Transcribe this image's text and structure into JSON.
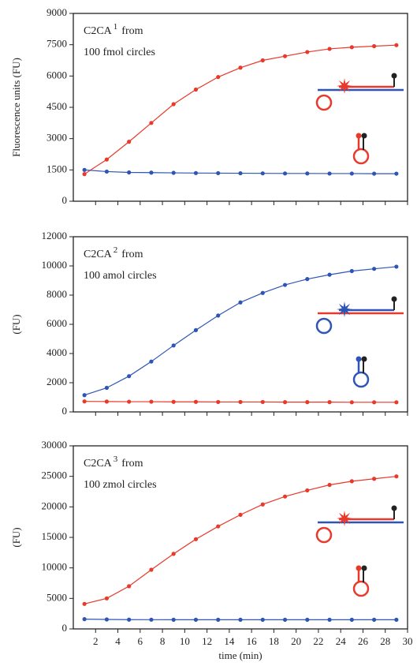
{
  "chart_data": [
    {
      "type": "line",
      "ylabel": "Fluorescence units (FU)",
      "annotation": {
        "text": "C2CA",
        "superscript": "1",
        "suffix": "from",
        "line2": "100 fmol circles"
      },
      "xlim": [
        0,
        30
      ],
      "xticks": [
        2,
        4,
        6,
        8,
        10,
        12,
        14,
        16,
        18,
        20,
        22,
        24,
        26,
        28,
        30
      ],
      "ylim": [
        0,
        9000
      ],
      "yticks": [
        0,
        1500,
        3000,
        4500,
        6000,
        7500,
        9000
      ],
      "x": [
        1,
        3,
        5,
        7,
        9,
        11,
        13,
        15,
        17,
        19,
        21,
        23,
        25,
        27,
        29
      ],
      "series": [
        {
          "color": "#e8392b",
          "values": [
            1300,
            2000,
            2850,
            3750,
            4650,
            5350,
            5950,
            6400,
            6750,
            6950,
            7150,
            7300,
            7380,
            7430,
            7480
          ]
        },
        {
          "color": "#2e55b5",
          "values": [
            1500,
            1420,
            1380,
            1370,
            1360,
            1350,
            1345,
            1340,
            1335,
            1330,
            1330,
            1325,
            1325,
            1320,
            1320
          ]
        }
      ]
    },
    {
      "type": "line",
      "ylabel": "(FU)",
      "annotation": {
        "text": "C2CA",
        "superscript": "2",
        "suffix": "from",
        "line2": "100 amol circles"
      },
      "xlim": [
        0,
        30
      ],
      "xticks": [
        2,
        4,
        6,
        8,
        10,
        12,
        14,
        16,
        18,
        20,
        22,
        24,
        26,
        28,
        30
      ],
      "ylim": [
        0,
        12000
      ],
      "yticks": [
        0,
        2000,
        4000,
        6000,
        8000,
        10000,
        12000
      ],
      "x": [
        1,
        3,
        5,
        7,
        9,
        11,
        13,
        15,
        17,
        19,
        21,
        23,
        25,
        27,
        29
      ],
      "series": [
        {
          "color": "#2e55b5",
          "values": [
            1150,
            1650,
            2450,
            3450,
            4550,
            5600,
            6600,
            7500,
            8150,
            8700,
            9100,
            9400,
            9650,
            9800,
            9950
          ]
        },
        {
          "color": "#e8392b",
          "values": [
            720,
            710,
            700,
            700,
            690,
            690,
            680,
            680,
            680,
            670,
            670,
            670,
            660,
            660,
            660
          ]
        }
      ]
    },
    {
      "type": "line",
      "ylabel": "(FU)",
      "xlabel": "time (min)",
      "annotation": {
        "text": "C2CA",
        "superscript": "3",
        "suffix": "from",
        "line2": "100 zmol circles"
      },
      "xlim": [
        0,
        30
      ],
      "xticks": [
        2,
        4,
        6,
        8,
        10,
        12,
        14,
        16,
        18,
        20,
        22,
        24,
        26,
        28,
        30
      ],
      "ylim": [
        0,
        30000
      ],
      "yticks": [
        0,
        5000,
        10000,
        15000,
        20000,
        25000,
        30000
      ],
      "x": [
        1,
        3,
        5,
        7,
        9,
        11,
        13,
        15,
        17,
        19,
        21,
        23,
        25,
        27,
        29
      ],
      "series": [
        {
          "color": "#e8392b",
          "values": [
            4100,
            5000,
            7000,
            9700,
            12300,
            14700,
            16800,
            18700,
            20400,
            21700,
            22700,
            23600,
            24200,
            24600,
            25000
          ]
        },
        {
          "color": "#2e55b5",
          "values": [
            1600,
            1550,
            1520,
            1510,
            1500,
            1500,
            1500,
            1500,
            1500,
            1500,
            1500,
            1500,
            1500,
            1500,
            1500
          ]
        }
      ]
    }
  ]
}
